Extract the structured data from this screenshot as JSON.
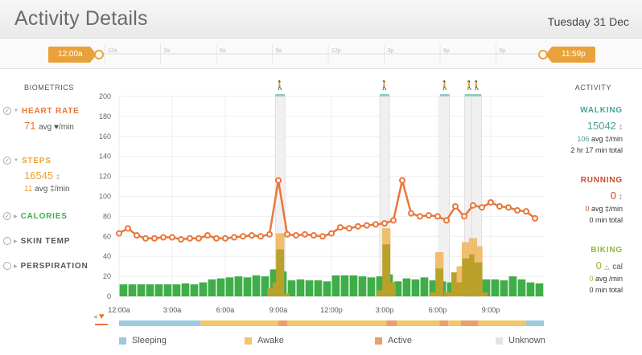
{
  "header": {
    "title": "Activity Details",
    "date": "Tuesday 31 Dec"
  },
  "colors": {
    "heart": "#e9763a",
    "steps": "#e9a23b",
    "calories": "#3fae49",
    "walking": "#4aa39a",
    "running": "#d0492f",
    "biking": "#8fb83b",
    "sleeping": "#9ccbe0",
    "awake": "#f3c66a",
    "active": "#e9a06a",
    "unknown": "#e4e4e4"
  },
  "timeline": {
    "start_label": "12:00a",
    "end_label": "11:59p",
    "ticks": [
      "12a",
      "3a",
      "6a",
      "9a",
      "12p",
      "3p",
      "6p",
      "9p"
    ]
  },
  "biometrics": {
    "title": "BIOMETRICS",
    "heart_rate": {
      "label": "HEART RATE",
      "value": "71",
      "unit": "avg ♥/min"
    },
    "steps": {
      "label": "STEPS",
      "value": "16545",
      "icon": "footsteps-icon",
      "avg_value": "11",
      "avg_unit": "avg ‡/min"
    },
    "calories": {
      "label": "CALORIES"
    },
    "skin_temp": {
      "label": "SKIN TEMP"
    },
    "perspiration": {
      "label": "PERSPIRATION"
    }
  },
  "activity": {
    "title": "ACTIVITY",
    "walking": {
      "label": "WALKING",
      "value": "15042",
      "avg_value": "106",
      "avg_unit": "avg ‡/min",
      "total": "2 hr 17 min total"
    },
    "running": {
      "label": "RUNNING",
      "value": "0",
      "avg_value": "0",
      "avg_unit": "avg ‡/min",
      "total": "0 min total"
    },
    "biking": {
      "label": "BIKING",
      "value": "0",
      "value_unit": "cal",
      "avg_value": "0",
      "avg_unit": "avg /min",
      "total": "0 min total"
    }
  },
  "legend": [
    "Sleeping",
    "Awake",
    "Active",
    "Unknown"
  ],
  "chart_data": {
    "type": "bar",
    "y_ticks": [
      0,
      20,
      40,
      60,
      80,
      100,
      120,
      140,
      160,
      180,
      200
    ],
    "ylim": [
      0,
      200
    ],
    "x_tick_labels": [
      "12:00a",
      "3:00a",
      "6:00a",
      "9:00a",
      "12:00p",
      "3:00p",
      "6:00p",
      "9:00p"
    ],
    "x_hours": [
      0,
      3,
      6,
      9,
      12,
      15,
      18,
      21
    ],
    "x_range_hours": [
      0,
      24
    ],
    "series": [
      {
        "name": "calories",
        "x_hours": [
          0,
          0.5,
          1,
          1.5,
          2,
          2.5,
          3,
          3.5,
          4,
          4.5,
          5,
          5.5,
          6,
          6.5,
          7,
          7.5,
          8,
          8.5,
          9,
          9.5,
          10,
          10.5,
          11,
          11.5,
          12,
          12.5,
          13,
          13.5,
          14,
          14.5,
          15,
          15.5,
          16,
          16.5,
          17,
          17.5,
          18,
          18.5,
          19,
          19.5,
          20,
          20.5,
          21,
          21.5,
          22,
          22.5,
          23,
          23.5
        ],
        "values": [
          12,
          12,
          12,
          12,
          12,
          12,
          12,
          13,
          12,
          14,
          17,
          18,
          19,
          20,
          19,
          21,
          20,
          27,
          25,
          16,
          17,
          16,
          16,
          15,
          21,
          21,
          21,
          20,
          19,
          20,
          22,
          15,
          18,
          17,
          19,
          16,
          15,
          14,
          15,
          14,
          15,
          17,
          17,
          16,
          20,
          17,
          14,
          13
        ]
      },
      {
        "name": "steps",
        "x_hours": [
          8.6,
          8.9,
          9.1,
          9.4,
          14.8,
          15.1,
          15.4,
          17.8,
          18.1,
          18.6,
          19.0,
          19.3,
          19.6,
          20.0,
          20.3,
          20.6
        ],
        "values": [
          8,
          14,
          63,
          3,
          6,
          68,
          14,
          4,
          44,
          4,
          24,
          30,
          54,
          58,
          50,
          4
        ]
      },
      {
        "name": "walking_window",
        "x_hours": [
          9.1,
          15.0,
          18.4,
          19.8,
          20.2
        ],
        "values": [
          200,
          200,
          200,
          200,
          200
        ]
      },
      {
        "name": "heart_rate",
        "x_hours": [
          0,
          0.5,
          1,
          1.5,
          2,
          2.5,
          3,
          3.5,
          4,
          4.5,
          5,
          5.5,
          6,
          6.5,
          7,
          7.5,
          8,
          8.5,
          9,
          9.5,
          10,
          10.5,
          11,
          11.5,
          12,
          12.5,
          13,
          13.5,
          14,
          14.5,
          15,
          15.5,
          16,
          16.5,
          17,
          17.5,
          18,
          18.5,
          19,
          19.5,
          20,
          20.5,
          21,
          21.5,
          22,
          22.5,
          23,
          23.5
        ],
        "values": [
          63,
          68,
          61,
          58,
          58,
          59,
          59,
          57,
          58,
          58,
          61,
          58,
          58,
          59,
          60,
          61,
          60,
          62,
          116,
          62,
          61,
          62,
          61,
          60,
          63,
          69,
          68,
          70,
          71,
          72,
          73,
          76,
          116,
          83,
          80,
          81,
          80,
          76,
          90,
          80,
          91,
          89,
          94,
          90,
          89,
          86,
          85,
          78
        ]
      }
    ]
  }
}
